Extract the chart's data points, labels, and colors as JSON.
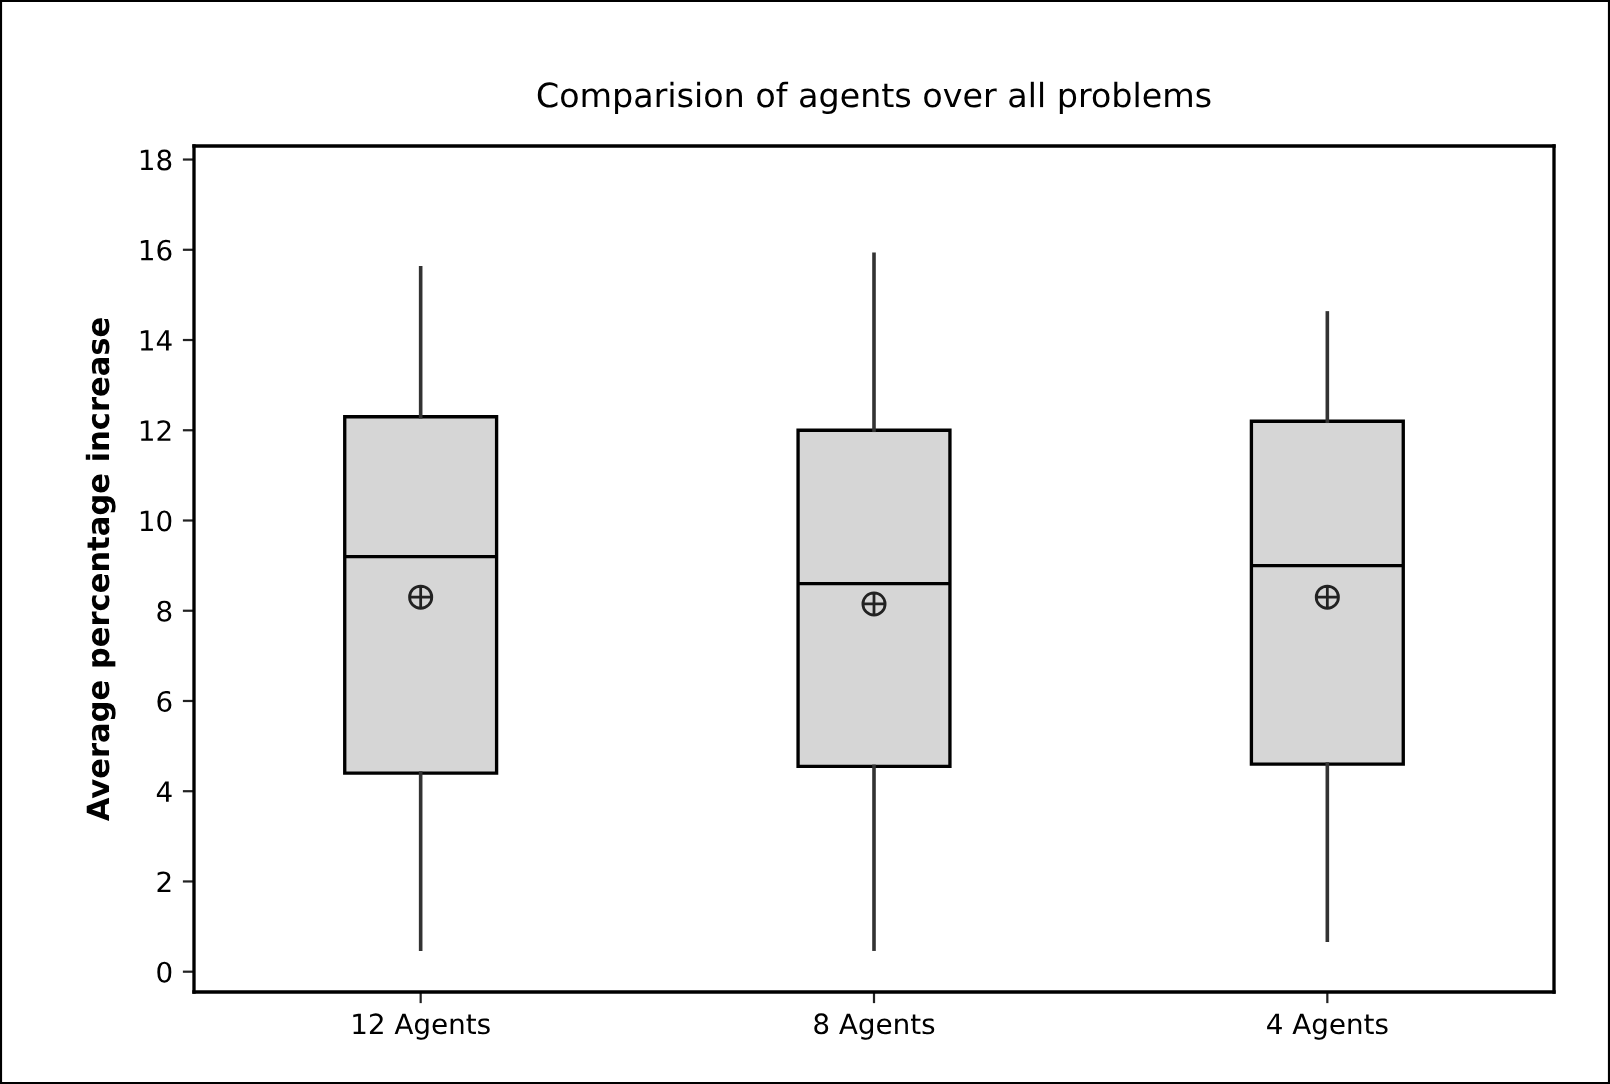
{
  "chart_data": {
    "type": "box",
    "title": "Comparision of agents over all problems",
    "ylabel": "Average percentage increase",
    "categories": [
      "12 Agents",
      "8 Agents",
      "4 Agents"
    ],
    "boxes": [
      {
        "low": 0.5,
        "q1": 4.4,
        "median": 9.2,
        "q3": 12.3,
        "high": 15.6,
        "mean": 8.3
      },
      {
        "low": 0.5,
        "q1": 4.55,
        "median": 8.6,
        "q3": 12.0,
        "high": 15.9,
        "mean": 8.15
      },
      {
        "low": 0.7,
        "q1": 4.6,
        "median": 9.0,
        "q3": 12.2,
        "high": 14.6,
        "mean": 8.3
      }
    ],
    "color": "#d6d6d6",
    "ylim": [
      -0.45,
      18.3
    ],
    "yticks": [
      0,
      2,
      4,
      6,
      8,
      10,
      12,
      14,
      16,
      18
    ],
    "grid": false,
    "legend": false
  }
}
